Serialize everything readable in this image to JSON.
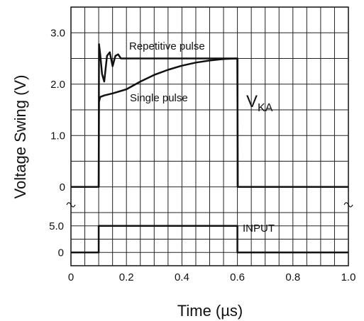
{
  "chart_data": {
    "type": "line",
    "title": "",
    "xlabel": "Time (µs)",
    "ylabel": "Voltage Swing (V)",
    "xlim": [
      0,
      1.0
    ],
    "x_ticks": [
      "0",
      "0.2",
      "0.4",
      "0.6",
      "0.8",
      "1.0"
    ],
    "x_tick_values": [
      0,
      0.2,
      0.4,
      0.6,
      0.8,
      1.0
    ],
    "grid": true,
    "upper_panel": {
      "ylim": [
        -0.5,
        3.5
      ],
      "y_ticks": [
        "0",
        "1.0",
        "2.0",
        "3.0"
      ],
      "y_tick_values": [
        0,
        1.0,
        2.0,
        3.0
      ],
      "series": [
        {
          "name": "Repetitive pulse",
          "x": [
            0,
            0.1,
            0.101,
            0.105,
            0.112,
            0.12,
            0.13,
            0.14,
            0.15,
            0.16,
            0.17,
            0.18,
            0.2,
            0.6,
            0.601,
            1.0
          ],
          "y": [
            0,
            0,
            2.78,
            2.6,
            2.2,
            2.05,
            2.55,
            2.62,
            2.35,
            2.55,
            2.58,
            2.5,
            2.5,
            2.5,
            0,
            0
          ]
        },
        {
          "name": "Single pulse",
          "x": [
            0,
            0.1,
            0.101,
            0.105,
            0.12,
            0.15,
            0.2,
            0.25,
            0.3,
            0.35,
            0.4,
            0.45,
            0.5,
            0.55,
            0.6,
            0.601,
            1.0
          ],
          "y": [
            0,
            0,
            1.65,
            1.75,
            1.78,
            1.82,
            1.9,
            2.05,
            2.18,
            2.28,
            2.36,
            2.42,
            2.46,
            2.49,
            2.5,
            0,
            0
          ]
        }
      ],
      "annotations": [
        "Repetitive pulse",
        "Single pulse"
      ],
      "signal_label": {
        "main": "V",
        "sub": "KA"
      }
    },
    "lower_panel": {
      "ylim": [
        -2.5,
        7.5
      ],
      "y_ticks": [
        "0",
        "5.0"
      ],
      "y_tick_values": [
        0,
        5.0
      ],
      "series": [
        {
          "name": "INPUT",
          "x": [
            0,
            0.1,
            0.1,
            0.6,
            0.6,
            1.0
          ],
          "y": [
            0,
            0,
            5.0,
            5.0,
            0,
            0
          ]
        }
      ],
      "annotations": [
        "INPUT"
      ]
    },
    "axis_break": true
  }
}
